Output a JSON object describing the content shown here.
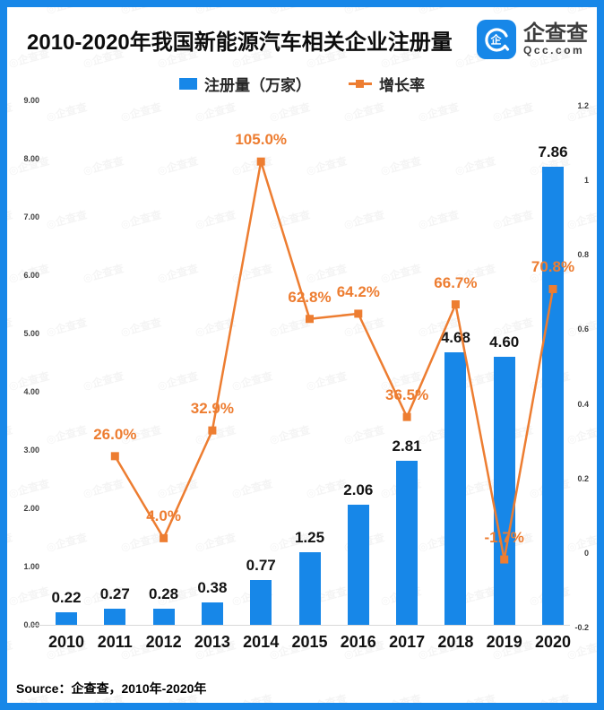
{
  "header": {
    "title": "2010-2020年我国新能源汽车相关企业注册量",
    "brand": {
      "name": "企查查",
      "domain": "Qcc.com"
    }
  },
  "legend": {
    "bar_label": "注册量（万家）",
    "line_label": "增长率"
  },
  "source_note": "Source：企查查，2010年-2020年",
  "watermark_text": "◎企查查",
  "colors": {
    "brand_blue": "#1787e8",
    "bar_blue": "#1787e8",
    "line_orange": "#ed7d31"
  },
  "chart_data": {
    "type": "bar+line",
    "title": "2010-2020年我国新能源汽车相关企业注册量",
    "categories": [
      "2010",
      "2011",
      "2012",
      "2013",
      "2014",
      "2015",
      "2016",
      "2017",
      "2018",
      "2019",
      "2020"
    ],
    "series": [
      {
        "name": "注册量（万家）",
        "type": "bar",
        "axis": "left",
        "color": "#1787e8",
        "values": [
          0.22,
          0.27,
          0.28,
          0.38,
          0.77,
          1.25,
          2.06,
          2.81,
          4.68,
          4.6,
          7.86
        ],
        "labels": [
          "0.22",
          "0.27",
          "0.28",
          "0.38",
          "0.77",
          "1.25",
          "2.06",
          "2.81",
          "4.68",
          "4.60",
          "7.86"
        ]
      },
      {
        "name": "增长率",
        "type": "line",
        "axis": "right",
        "color": "#ed7d31",
        "values": [
          null,
          0.26,
          0.04,
          0.329,
          1.05,
          0.628,
          0.642,
          0.365,
          0.667,
          -0.017,
          0.708
        ],
        "labels": [
          null,
          "26.0%",
          "4.0%",
          "32.9%",
          "105.0%",
          "62.8%",
          "64.2%",
          "36.5%",
          "66.7%",
          "-1.7%",
          "70.8%"
        ]
      }
    ],
    "left_axis": {
      "ticks": [
        "9.00",
        "8.00",
        "7.00",
        "6.00",
        "5.00",
        "4.00",
        "3.00",
        "2.00",
        "1.00",
        "0.00"
      ],
      "min": 0,
      "max": 9
    },
    "right_axis": {
      "ticks": [
        "1.2",
        "1",
        "0.8",
        "0.6",
        "0.4",
        "0.2",
        "0",
        "-0.2"
      ],
      "min": -0.2,
      "max": 1.2
    },
    "legend_entries": [
      "注册量（万家）",
      "增长率"
    ],
    "grid": false,
    "legend_position": "top-center"
  }
}
